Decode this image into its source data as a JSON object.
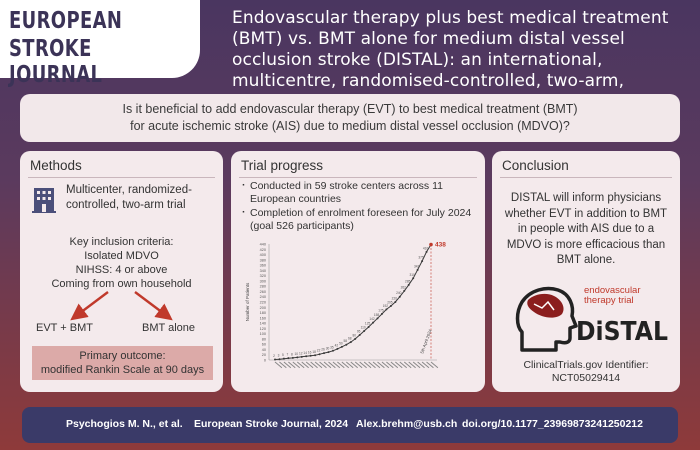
{
  "logo": {
    "line1": "EUROPEAN",
    "line2": "STROKE JOURNAL"
  },
  "header": {
    "title": "Endovascular therapy plus best medical treatment (BMT) vs. BMT alone for medium distal vessel occlusion stroke (DISTAL): an international, multicentre, randomised-controlled, two-arm, assessor-blinded trial"
  },
  "question": {
    "line1": "Is it beneficial to add endovascular therapy (EVT) to best medical treatment (BMT)",
    "line2": "for acute ischemic stroke (AIS) due to medium distal vessel occlusion (MDVO)?"
  },
  "methods": {
    "title": "Methods",
    "design": "Multicenter, randomized-controlled, two-arm trial",
    "criteria_title": "Key inclusion criteria:",
    "criteria": [
      "Isolated MDVO",
      "NIHSS: 4 or above",
      "Coming from own household"
    ],
    "arm_left": "EVT + BMT",
    "arm_right": "BMT alone",
    "outcome_line1": "Primary outcome:",
    "outcome_line2": "modified Rankin Scale at 90 days",
    "arrow_color": "#c0392b"
  },
  "progress": {
    "title": "Trial progress",
    "bullets": [
      "Conducted in 59 stroke centers across 11 European countries",
      "Completion of enrolment foreseen for July 2024 (goal 526 participants)"
    ]
  },
  "chart_data": {
    "type": "line",
    "ylabel": "Number of Patients",
    "ylim": [
      0,
      440
    ],
    "yticks": [
      0,
      20,
      40,
      60,
      80,
      100,
      120,
      140,
      160,
      180,
      200,
      220,
      240,
      260,
      280,
      300,
      320,
      340,
      360,
      380,
      400,
      420,
      440
    ],
    "values": [
      2,
      3,
      5,
      7,
      8,
      10,
      12,
      14,
      16,
      18,
      22,
      26,
      30,
      35,
      42,
      50,
      58,
      68,
      80,
      95,
      110,
      125,
      142,
      158,
      175,
      192,
      205,
      220,
      240,
      262,
      285,
      310,
      342,
      375,
      410,
      438
    ],
    "highlight_label": "438",
    "annotation": "5th April 2024",
    "line_color": "#3a3a3a",
    "highlight_color": "#c0392b"
  },
  "conclusion": {
    "title": "Conclusion",
    "text": "DISTAL will inform physicians whether EVT in addition to BMT in people with AIS due to a MDVO is more efficacious than BMT alone.",
    "logo_tagline_1": "endovascular",
    "logo_tagline_2": "therapy trial",
    "logo_word": "DiSTAL",
    "registry_line1": "ClinicalTrials.gov Identifier:",
    "registry_line2": "NCT05029414",
    "accent_color": "#c0392b"
  },
  "footer": {
    "authors": "Psychogios M. N., et al.",
    "journal": "European Stroke Journal, 2024",
    "email": "Alex.brehm@usb.ch",
    "doi": "doi.org/10.1177_23969873241250212"
  }
}
